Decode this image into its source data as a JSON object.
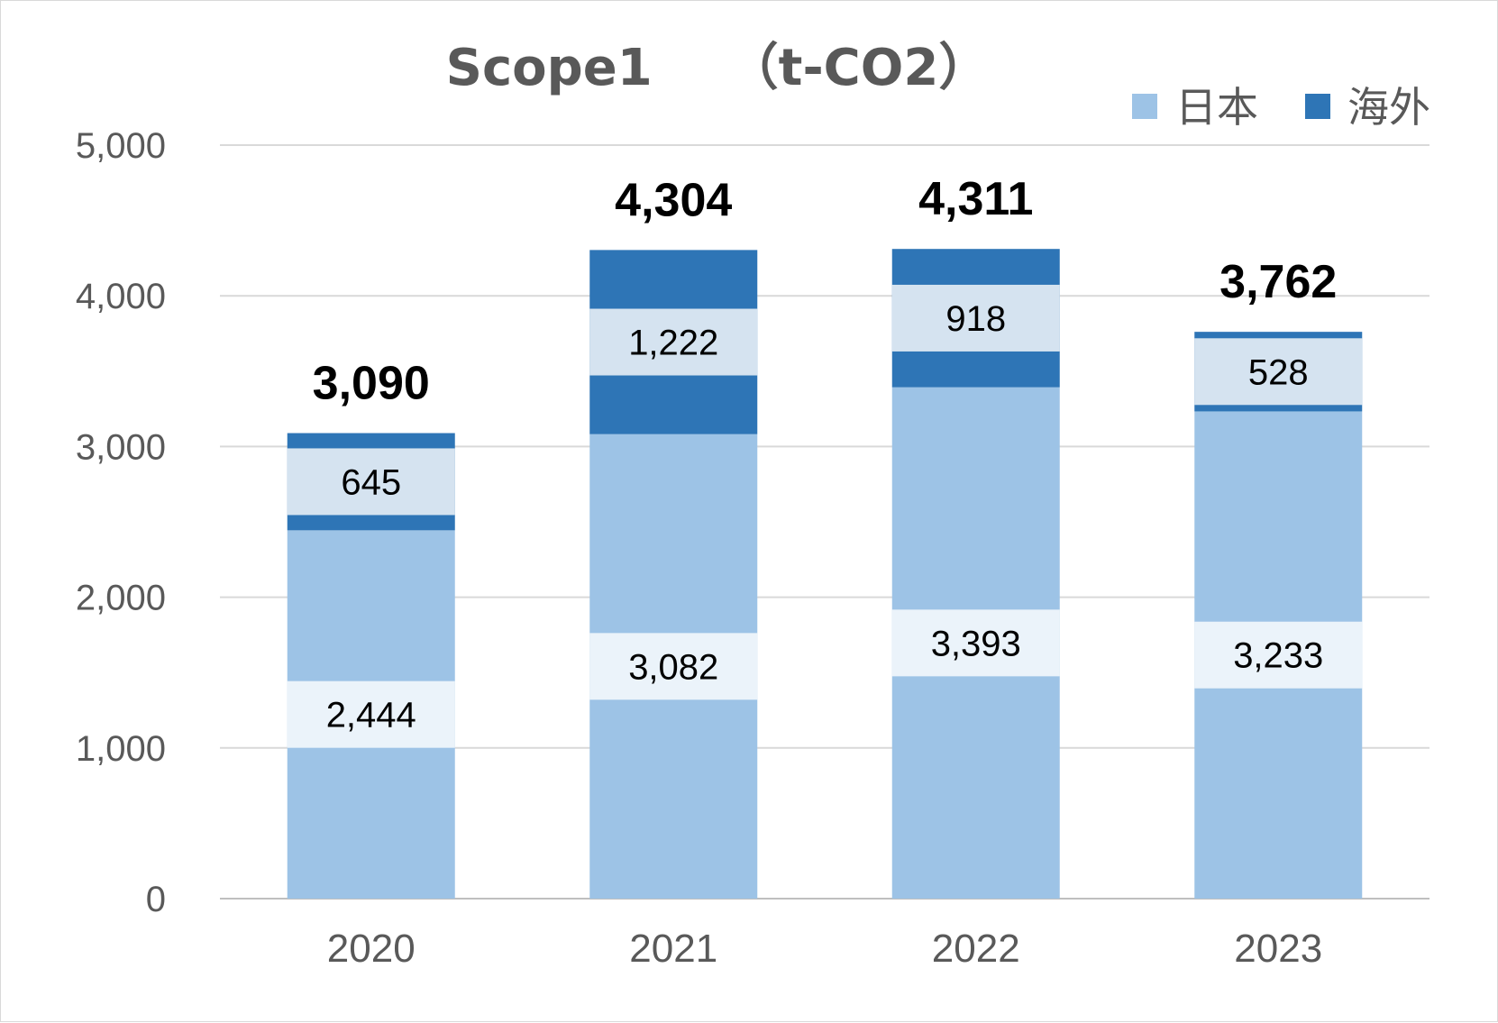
{
  "chart_data": {
    "type": "bar",
    "stacked": true,
    "title": "Scope1　　（t-CO2）",
    "categories": [
      "2020",
      "2021",
      "2022",
      "2023"
    ],
    "series": [
      {
        "name": "日本",
        "values": [
          2444,
          3082,
          3393,
          3233
        ],
        "labels": [
          "2,444",
          "3,082",
          "3,393",
          "3,233"
        ],
        "color": "#9dc3e6"
      },
      {
        "name": "海外",
        "values": [
          645,
          1222,
          918,
          528
        ],
        "labels": [
          "645",
          "1,222",
          "918",
          "528"
        ],
        "color": "#2e75b6"
      }
    ],
    "totals": [
      "3,090",
      "4,304",
      "4,311",
      "3,762"
    ],
    "ylim": [
      0,
      5000
    ],
    "yticks": [
      "0",
      "1,000",
      "2,000",
      "3,000",
      "4,000",
      "5,000"
    ],
    "ytick_values": [
      0,
      1000,
      2000,
      3000,
      4000,
      5000
    ],
    "grid": true,
    "legend": "top-right",
    "label_background": "#ffffff"
  }
}
